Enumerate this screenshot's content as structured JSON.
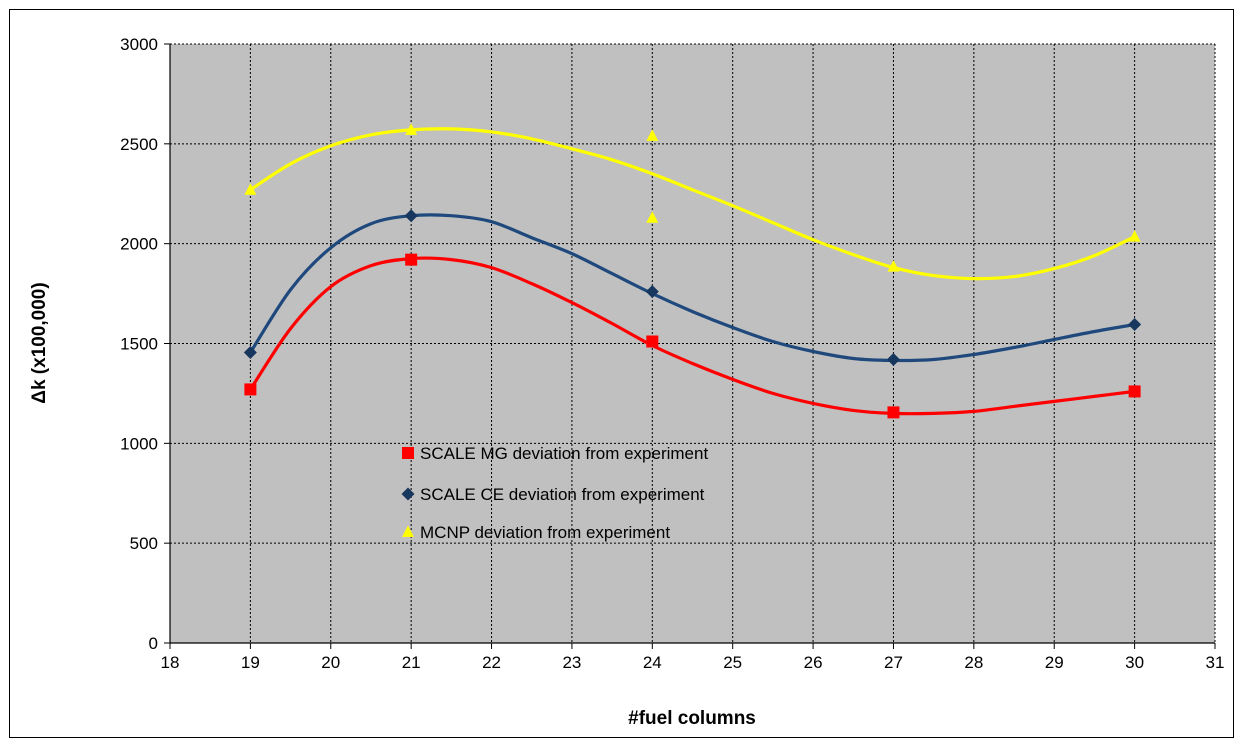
{
  "chart_data": {
    "type": "scatter",
    "title": "",
    "xlabel": "#fuel columns",
    "ylabel": "Δk (x100,000)",
    "xlim": [
      18,
      31
    ],
    "ylim": [
      0,
      3000
    ],
    "xticks": [
      "18",
      "19",
      "20",
      "21",
      "22",
      "23",
      "24",
      "25",
      "26",
      "27",
      "28",
      "29",
      "30",
      "31"
    ],
    "yticks": [
      "0",
      "500",
      "1000",
      "1500",
      "2000",
      "2500",
      "3000"
    ],
    "grid": true,
    "legend_position": "center-left",
    "plot_background": "#c0c0c0",
    "series": [
      {
        "name": "SCALE MG deviation from experiment",
        "color": "#ff0000",
        "trend_color": "#ff0000",
        "marker": "square",
        "x": [
          19,
          21,
          24,
          27,
          30
        ],
        "y": [
          1270,
          1920,
          1510,
          1155,
          1260
        ],
        "trend_x": [
          19,
          19.5,
          20,
          20.5,
          21,
          21.5,
          22,
          22.5,
          23,
          23.5,
          24,
          24.5,
          25,
          25.5,
          26,
          26.5,
          27,
          27.5,
          28,
          28.5,
          29,
          29.5,
          30
        ],
        "trend_y": [
          1270,
          1575,
          1785,
          1890,
          1925,
          1920,
          1880,
          1800,
          1705,
          1600,
          1490,
          1400,
          1320,
          1250,
          1200,
          1165,
          1150,
          1150,
          1160,
          1185,
          1210,
          1235,
          1260
        ]
      },
      {
        "name": "SCALE CE deviation  from experiment",
        "color": "#17375e",
        "trend_color": "#1f497d",
        "marker": "diamond",
        "x": [
          19,
          21,
          24,
          27,
          30
        ],
        "y": [
          1455,
          2140,
          1760,
          1420,
          1595
        ],
        "trend_x": [
          19,
          19.5,
          20,
          20.5,
          21,
          21.5,
          22,
          22.5,
          23,
          23.5,
          24,
          24.5,
          25,
          25.5,
          26,
          26.5,
          27,
          27.5,
          28,
          28.5,
          29,
          29.5,
          30
        ],
        "trend_y": [
          1455,
          1770,
          1980,
          2100,
          2140,
          2140,
          2110,
          2030,
          1950,
          1850,
          1750,
          1660,
          1580,
          1510,
          1460,
          1425,
          1415,
          1420,
          1445,
          1480,
          1520,
          1560,
          1595
        ]
      },
      {
        "name": "MCNP deviation from experiment",
        "color": "#ffff00",
        "trend_color": "#ffff00",
        "marker": "triangle",
        "x": [
          19,
          21,
          24,
          24,
          27,
          30
        ],
        "y": [
          2270,
          2570,
          2540,
          2130,
          1885,
          2035
        ],
        "trend_x": [
          19,
          19.5,
          20,
          20.5,
          21,
          21.5,
          22,
          22.5,
          23,
          23.5,
          24,
          24.5,
          25,
          25.5,
          26,
          26.5,
          27,
          27.5,
          28,
          28.5,
          29,
          29.5,
          30
        ],
        "trend_y": [
          2270,
          2400,
          2490,
          2545,
          2570,
          2575,
          2560,
          2525,
          2475,
          2420,
          2350,
          2270,
          2190,
          2105,
          2020,
          1945,
          1880,
          1840,
          1825,
          1835,
          1875,
          1940,
          2035
        ]
      }
    ]
  }
}
